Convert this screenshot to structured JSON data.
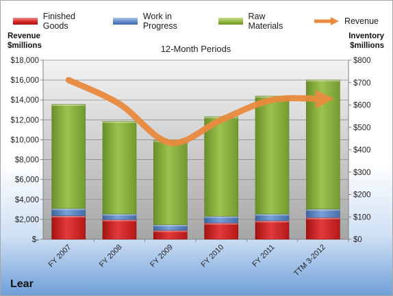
{
  "legend": {
    "finished_goods": "Finished Goods",
    "work_in_progress": "Work in Progress",
    "raw_materials": "Raw Materials",
    "revenue": "Revenue"
  },
  "company": "Lear",
  "colors": {
    "finished_goods": "#d32222",
    "work_in_progress": "#5e88c6",
    "raw_materials": "#8db53e",
    "revenue": "#ea8a3e"
  },
  "chart_data": {
    "type": "bar",
    "subtype": "stacked-bar-with-line",
    "title": "12-Month Periods",
    "left_axis_title": [
      "Revenue",
      "$millions"
    ],
    "right_axis_title": [
      "Inventory",
      "$millions"
    ],
    "categories": [
      "FY 2007",
      "FY 2008",
      "FY 2009",
      "FY 2010",
      "FY 2011",
      "TTM 3-2012"
    ],
    "series": [
      {
        "name": "Finished Goods",
        "axis": "right",
        "values": [
          105,
          88,
          40,
          73,
          83,
          97
        ]
      },
      {
        "name": "Work in Progress",
        "axis": "right",
        "values": [
          33,
          25,
          25,
          30,
          30,
          38
        ]
      },
      {
        "name": "Raw Materials",
        "axis": "right",
        "values": [
          465,
          414,
          377,
          445,
          527,
          577
        ]
      },
      {
        "name": "Revenue",
        "axis": "left",
        "type": "line",
        "values": [
          16000,
          13600,
          9700,
          12000,
          14000,
          14100
        ]
      }
    ],
    "left_axis": {
      "ylim": [
        0,
        18000
      ],
      "ticks": [
        "$-",
        "$2,000",
        "$4,000",
        "$6,000",
        "$8,000",
        "$10,000",
        "$12,000",
        "$14,000",
        "$16,000",
        "$18,000"
      ]
    },
    "right_axis": {
      "ylim": [
        0,
        800
      ],
      "ticks": [
        "$0",
        "$100",
        "$200",
        "$300",
        "$400",
        "$500",
        "$600",
        "$700",
        "$800"
      ]
    },
    "grid": true,
    "legend_position": "top"
  }
}
